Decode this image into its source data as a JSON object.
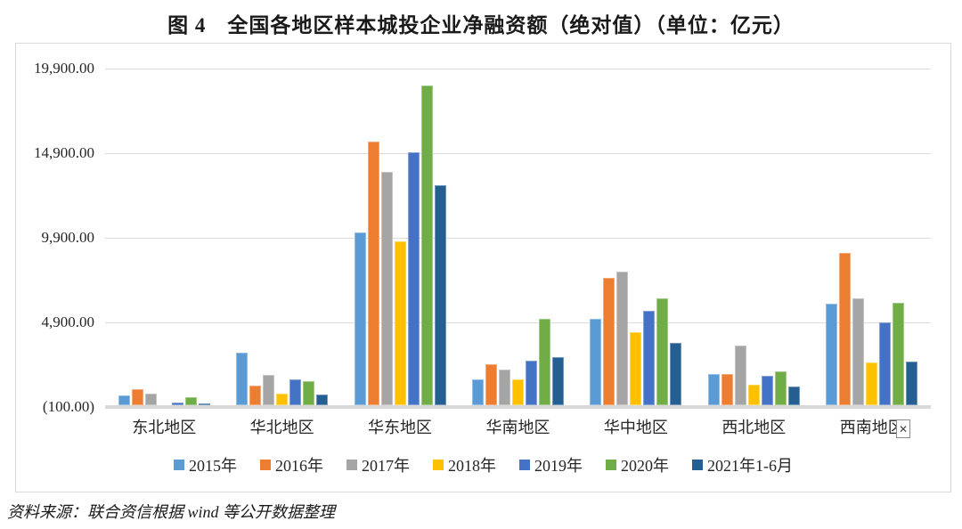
{
  "title": "图 4　全国各地区样本城投企业净融资额（绝对值）（单位：亿元）",
  "source": "资料来源：联合资信根据 wind 等公开数据整理",
  "broken_image_glyph": "✕",
  "chart_data": {
    "type": "bar",
    "title": "图 4 全国各地区样本城投企业净融资额（绝对值）（单位：亿元）",
    "unit": "亿元",
    "xlabel": "",
    "ylabel": "",
    "ylim": [
      -100,
      19900
    ],
    "grid": "horizontal",
    "legend_position": "bottom",
    "yticks": [
      {
        "label": "19,900.00",
        "value": 19900
      },
      {
        "label": "14,900.00",
        "value": 14900
      },
      {
        "label": "9,900.00",
        "value": 9900
      },
      {
        "label": "4,900.00",
        "value": 4900
      },
      {
        "label": "(100.00)",
        "value": -100
      }
    ],
    "categories": [
      "东北地区",
      "华北地区",
      "华东地区",
      "华南地区",
      "华中地区",
      "西北地区",
      "西南地区"
    ],
    "series": [
      {
        "name": "2015年",
        "color": "#5B9BD5",
        "values": [
          600,
          3100,
          10200,
          1500,
          5100,
          1850,
          6000
        ]
      },
      {
        "name": "2016年",
        "color": "#ED7D31",
        "values": [
          950,
          1150,
          15600,
          2400,
          7500,
          1850,
          9000
        ]
      },
      {
        "name": "2017年",
        "color": "#A5A5A5",
        "values": [
          700,
          1800,
          13800,
          2100,
          7900,
          3500,
          6300
        ]
      },
      {
        "name": "2018年",
        "color": "#FFC000",
        "values": [
          -60,
          700,
          9700,
          1550,
          4300,
          1200,
          2500
        ]
      },
      {
        "name": "2019年",
        "color": "#4472C4",
        "values": [
          180,
          1550,
          14950,
          2650,
          5600,
          1750,
          4900
        ]
      },
      {
        "name": "2020年",
        "color": "#70AD47",
        "values": [
          480,
          1400,
          18900,
          5100,
          6300,
          2000,
          6050
        ]
      },
      {
        "name": "2021年1-6月",
        "color": "#255E91",
        "values": [
          100,
          620,
          13000,
          2850,
          3700,
          1100,
          2600
        ]
      }
    ]
  }
}
